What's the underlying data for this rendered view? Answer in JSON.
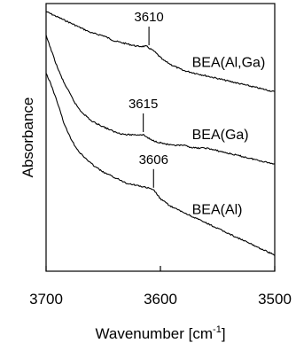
{
  "chart_data": {
    "type": "line",
    "xlabel": "Wavenumber [cm",
    "xlabel_sup": "-1",
    "xlabel_close": "]",
    "ylabel": "Absorbance",
    "xlim": [
      3700,
      3500
    ],
    "x_reversed": true,
    "x_ticks": [
      3700,
      3600,
      3500
    ],
    "y_ticks_shown": false,
    "grid": false,
    "legend": "none",
    "series": [
      {
        "name": "BEA(Al,Ga)",
        "x": [
          3700,
          3690,
          3680,
          3670,
          3660,
          3650,
          3640,
          3630,
          3620,
          3612,
          3605,
          3598,
          3590,
          3580,
          3570,
          3560,
          3550,
          3540,
          3530,
          3520,
          3510,
          3500
        ],
        "y": [
          0.97,
          0.95,
          0.93,
          0.91,
          0.89,
          0.88,
          0.86,
          0.85,
          0.84,
          0.84,
          0.82,
          0.79,
          0.77,
          0.75,
          0.74,
          0.73,
          0.72,
          0.71,
          0.7,
          0.69,
          0.68,
          0.67
        ],
        "peak": {
          "x": 3610,
          "label": "3610"
        }
      },
      {
        "name": "BEA(Ga)",
        "x": [
          3700,
          3695,
          3690,
          3685,
          3680,
          3675,
          3670,
          3665,
          3660,
          3650,
          3640,
          3630,
          3620,
          3615,
          3608,
          3600,
          3590,
          3580,
          3570,
          3560,
          3550,
          3540,
          3530,
          3520,
          3510,
          3500
        ],
        "y": [
          0.88,
          0.82,
          0.76,
          0.71,
          0.67,
          0.63,
          0.6,
          0.58,
          0.56,
          0.54,
          0.52,
          0.51,
          0.51,
          0.51,
          0.49,
          0.48,
          0.47,
          0.47,
          0.46,
          0.46,
          0.45,
          0.44,
          0.43,
          0.42,
          0.41,
          0.4
        ],
        "peak": {
          "x": 3615,
          "label": "3615"
        }
      },
      {
        "name": "BEA(Al)",
        "x": [
          3700,
          3695,
          3690,
          3685,
          3680,
          3675,
          3670,
          3665,
          3660,
          3650,
          3640,
          3630,
          3620,
          3610,
          3605,
          3600,
          3590,
          3580,
          3570,
          3560,
          3550,
          3540,
          3530,
          3520,
          3510,
          3500
        ],
        "y": [
          0.74,
          0.69,
          0.63,
          0.56,
          0.51,
          0.47,
          0.44,
          0.42,
          0.4,
          0.37,
          0.35,
          0.33,
          0.32,
          0.31,
          0.3,
          0.27,
          0.24,
          0.22,
          0.2,
          0.18,
          0.16,
          0.14,
          0.12,
          0.1,
          0.08,
          0.06
        ],
        "peak": {
          "x": 3606,
          "label": "3606"
        }
      }
    ]
  }
}
